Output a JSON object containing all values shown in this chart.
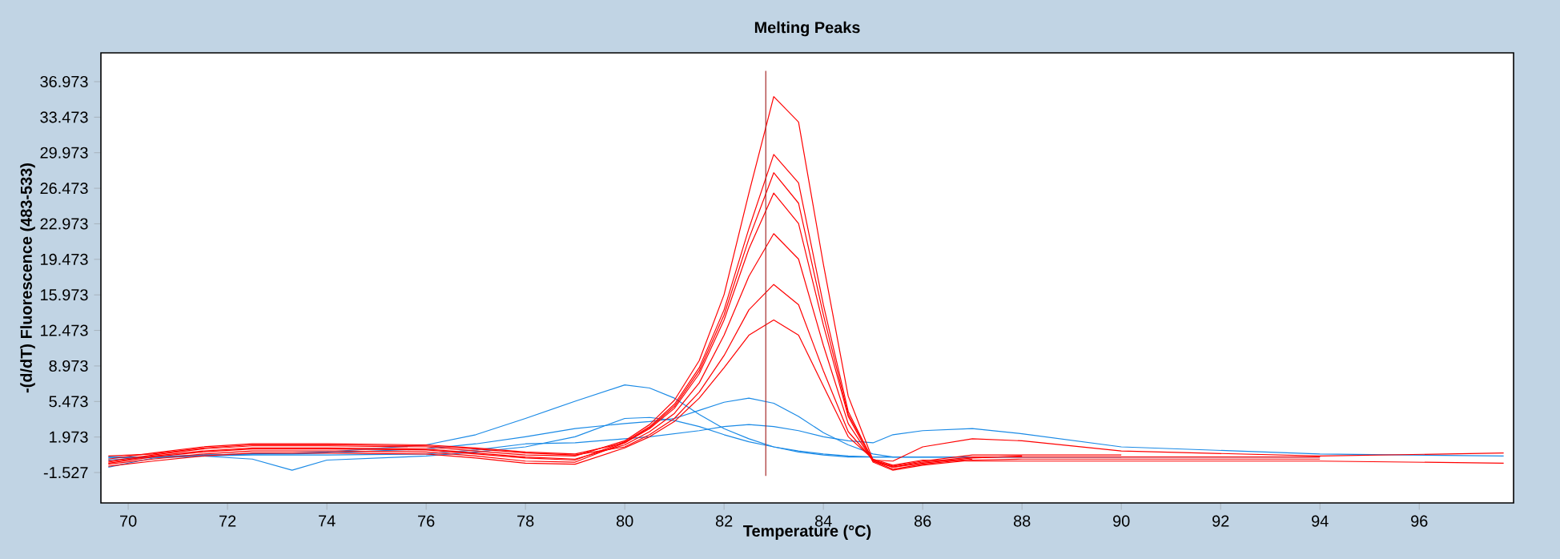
{
  "chart_data": {
    "type": "line",
    "title": "Melting Peaks",
    "xlabel": "Temperature (°C)",
    "ylabel": "-(d/dT) Fluorescence (483-533)",
    "marker": "none",
    "line_style": "solid",
    "xlim": [
      69.45,
      97.9
    ],
    "ylim": [
      -4.52,
      39.81
    ],
    "xticks": [
      70,
      72,
      74,
      76,
      78,
      80,
      82,
      84,
      86,
      88,
      90,
      92,
      94,
      96
    ],
    "yticks": [
      -1.527,
      1.973,
      5.473,
      8.973,
      12.473,
      15.973,
      19.473,
      22.973,
      26.473,
      29.973,
      33.473,
      36.973
    ],
    "x": [
      69.6,
      70.5,
      71.5,
      72.5,
      73.3,
      74,
      76,
      77,
      78,
      79,
      80,
      80.5,
      81,
      81.5,
      82,
      82.5,
      83,
      83.5,
      84,
      84.5,
      85,
      85.4,
      86,
      87,
      88,
      90,
      94,
      97.7
    ],
    "series": [
      {
        "color": "#1a8ae6",
        "values": [
          -0.1,
          0,
          0.2,
          0.3,
          0.4,
          0.5,
          1.2,
          2.2,
          3.8,
          5.5,
          7.1,
          6.8,
          5.8,
          4.2,
          2.8,
          1.8,
          1.0,
          0.5,
          0.2,
          0,
          0,
          0,
          0,
          0,
          0,
          0,
          0,
          null
        ]
      },
      {
        "color": "#1a8ae6",
        "values": [
          -0.3,
          0,
          0.2,
          0.3,
          0.3,
          0.4,
          0.8,
          1.3,
          2.0,
          2.8,
          3.3,
          3.5,
          3.8,
          4.6,
          5.4,
          5.8,
          5.3,
          4.0,
          2.4,
          1.2,
          0.3,
          0,
          0,
          0,
          0,
          null,
          null,
          null
        ]
      },
      {
        "color": "#1a8ae6",
        "values": [
          -1.0,
          -0.1,
          0.1,
          -0.2,
          -1.3,
          -0.3,
          0.1,
          0.5,
          1.0,
          2.0,
          3.8,
          3.9,
          3.6,
          3.0,
          2.2,
          1.5,
          1.0,
          0.6,
          0.3,
          0.1,
          0,
          0,
          0,
          0,
          0,
          0,
          null,
          null
        ]
      },
      {
        "color": "#1a8ae6",
        "values": [
          0.0,
          0,
          0.1,
          0.2,
          0.2,
          0.2,
          0.3,
          0.7,
          1.3,
          1.4,
          1.8,
          2.0,
          2.3,
          2.6,
          3.0,
          3.2,
          3.0,
          2.6,
          2.0,
          1.6,
          1.4,
          2.2,
          2.6,
          2.8,
          2.3,
          1.0,
          0.3,
          0.1
        ]
      },
      {
        "color": "#ff0000",
        "values": [
          -0.4,
          0.2,
          0.8,
          1.1,
          1.1,
          1.1,
          1.0,
          0.6,
          0.2,
          0.1,
          1.6,
          3.2,
          5.6,
          9.5,
          16,
          26,
          35.5,
          33,
          19,
          6,
          -0.3,
          -1.0,
          -0.5,
          0,
          0,
          0,
          0,
          null
        ]
      },
      {
        "color": "#ff0000",
        "values": [
          -0.6,
          0.0,
          0.5,
          0.8,
          0.8,
          0.8,
          0.7,
          0.3,
          -0.1,
          -0.3,
          1.5,
          3.0,
          5.2,
          8.8,
          14.5,
          22.5,
          29.8,
          27,
          15,
          4.5,
          -0.4,
          -1.2,
          -0.7,
          -0.2,
          null,
          null,
          null,
          null
        ]
      },
      {
        "color": "#ff0000",
        "values": [
          -0.2,
          0.4,
          1.0,
          1.3,
          1.3,
          1.3,
          1.2,
          0.9,
          0.5,
          0.3,
          1.4,
          2.9,
          5.0,
          8.5,
          14,
          21.5,
          28,
          25,
          14,
          4.2,
          -0.3,
          -0.4,
          1.0,
          1.8,
          1.6,
          0.6,
          0.1,
          0.4
        ]
      },
      {
        "color": "#ff0000",
        "values": [
          -0.7,
          -0.2,
          0.3,
          0.6,
          0.6,
          0.6,
          0.5,
          0.1,
          -0.4,
          -0.5,
          1.4,
          2.8,
          4.8,
          8.2,
          13.5,
          20.5,
          26,
          23,
          13,
          4,
          -0.5,
          -1.3,
          -0.8,
          -0.3,
          -0.2,
          -0.2,
          -0.2,
          null
        ]
      },
      {
        "color": "#ff0000",
        "values": [
          -0.5,
          0.1,
          0.6,
          0.9,
          0.9,
          0.9,
          0.8,
          0.4,
          0,
          -0.2,
          1.2,
          2.5,
          4.3,
          7.3,
          12,
          17.8,
          22,
          19.5,
          11,
          3.3,
          -0.4,
          -1.0,
          -0.6,
          -0.1,
          0.1,
          null,
          null,
          null
        ]
      },
      {
        "color": "#ff0000",
        "values": [
          0.1,
          0.3,
          0.9,
          1.2,
          1.2,
          1.2,
          1.1,
          0.8,
          0.4,
          0.2,
          1.0,
          2.2,
          3.8,
          6.4,
          10,
          14.5,
          17,
          15,
          8.5,
          2.5,
          -0.3,
          -0.9,
          -0.4,
          0.2,
          0.2,
          0.2,
          null,
          null
        ]
      },
      {
        "color": "#ff0000",
        "values": [
          -0.9,
          -0.4,
          0.1,
          0.4,
          0.4,
          0.4,
          0.3,
          -0.1,
          -0.6,
          -0.7,
          0.9,
          2.0,
          3.5,
          5.8,
          8.8,
          12,
          13.5,
          12,
          7,
          2,
          -0.2,
          -0.8,
          -0.3,
          -0.4,
          -0.4,
          -0.4,
          -0.4,
          -0.6
        ]
      }
    ],
    "ref_lines": [
      {
        "axis": "x",
        "value": 82.84,
        "color": "#a52a2a"
      }
    ]
  }
}
